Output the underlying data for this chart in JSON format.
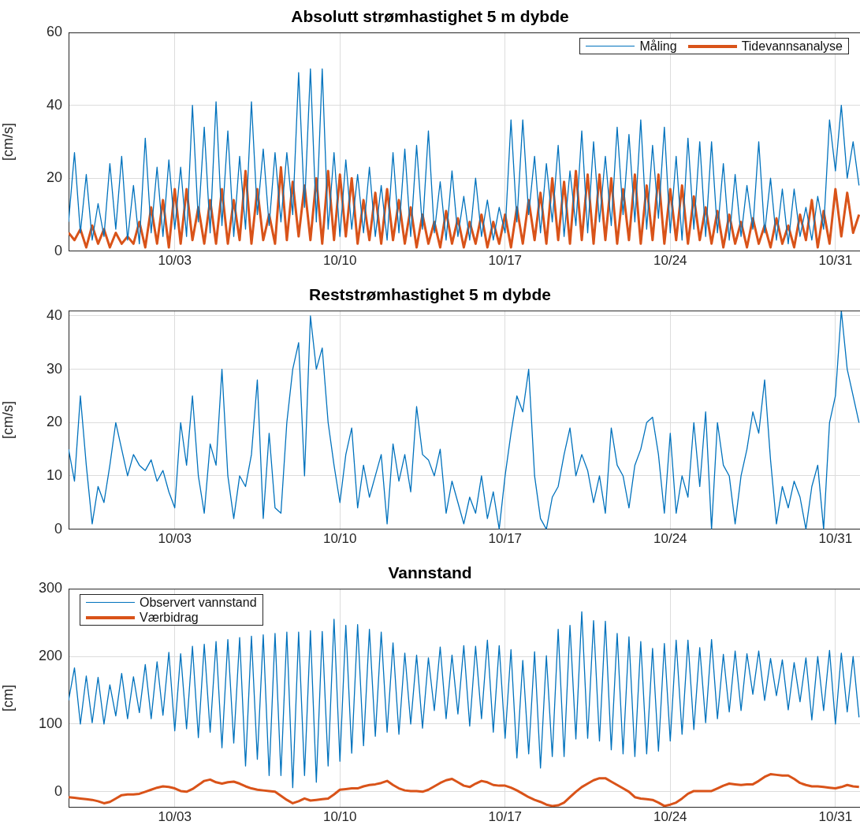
{
  "chart_data": [
    {
      "type": "line",
      "title": "Absolutt strømhastighet 5 m dybde",
      "ylabel": "[cm/s]",
      "legend": "top right",
      "grid": true,
      "xlim": [
        "--09-28T12:00",
        "--11-01T01:00"
      ],
      "ylim": [
        0,
        60
      ],
      "yticks": [
        0,
        20,
        40,
        60
      ],
      "xticks": [
        {
          "value": "--10-03",
          "label": "10/03"
        },
        {
          "value": "--10-10",
          "label": "10/10"
        },
        {
          "value": "--10-17",
          "label": "10/17"
        },
        {
          "value": "--10-24",
          "label": "10/24"
        },
        {
          "value": "--10-31",
          "label": "10/31"
        }
      ],
      "x": [
        "--09-28T12:00",
        "--09-28T18:00",
        "--09-29T00:00",
        "--09-29T06:00",
        "--09-29T12:00",
        "--09-29T18:00",
        "--09-30T00:00",
        "--09-30T06:00",
        "--09-30T12:00",
        "--09-30T18:00",
        "--10-01T00:00",
        "--10-01T06:00",
        "--10-01T12:00",
        "--10-01T18:00",
        "--10-02T00:00",
        "--10-02T06:00",
        "--10-02T12:00",
        "--10-02T18:00",
        "--10-03T00:00",
        "--10-03T06:00",
        "--10-03T12:00",
        "--10-03T18:00",
        "--10-04T00:00",
        "--10-04T06:00",
        "--10-04T12:00",
        "--10-04T18:00",
        "--10-05T00:00",
        "--10-05T06:00",
        "--10-05T12:00",
        "--10-05T18:00",
        "--10-06T00:00",
        "--10-06T06:00",
        "--10-06T12:00",
        "--10-06T18:00",
        "--10-07T00:00",
        "--10-07T06:00",
        "--10-07T12:00",
        "--10-07T18:00",
        "--10-08T00:00",
        "--10-08T06:00",
        "--10-08T12:00",
        "--10-08T18:00",
        "--10-09T00:00",
        "--10-09T06:00",
        "--10-09T12:00",
        "--10-09T18:00",
        "--10-10T00:00",
        "--10-10T06:00",
        "--10-10T12:00",
        "--10-10T18:00",
        "--10-11T00:00",
        "--10-11T06:00",
        "--10-11T12:00",
        "--10-11T18:00",
        "--10-12T00:00",
        "--10-12T06:00",
        "--10-12T12:00",
        "--10-12T18:00",
        "--10-13T00:00",
        "--10-13T06:00",
        "--10-13T12:00",
        "--10-13T18:00",
        "--10-14T00:00",
        "--10-14T06:00",
        "--10-14T12:00",
        "--10-14T18:00",
        "--10-15T00:00",
        "--10-15T06:00",
        "--10-15T12:00",
        "--10-15T18:00",
        "--10-16T00:00",
        "--10-16T06:00",
        "--10-16T12:00",
        "--10-16T18:00",
        "--10-17T00:00",
        "--10-17T06:00",
        "--10-17T12:00",
        "--10-17T18:00",
        "--10-18T00:00",
        "--10-18T06:00",
        "--10-18T12:00",
        "--10-18T18:00",
        "--10-19T00:00",
        "--10-19T06:00",
        "--10-19T12:00",
        "--10-19T18:00",
        "--10-20T00:00",
        "--10-20T06:00",
        "--10-20T12:00",
        "--10-20T18:00",
        "--10-21T00:00",
        "--10-21T06:00",
        "--10-21T12:00",
        "--10-21T18:00",
        "--10-22T00:00",
        "--10-22T06:00",
        "--10-22T12:00",
        "--10-22T18:00",
        "--10-23T00:00",
        "--10-23T06:00",
        "--10-23T12:00",
        "--10-23T18:00",
        "--10-24T00:00",
        "--10-24T06:00",
        "--10-24T12:00",
        "--10-24T18:00",
        "--10-25T00:00",
        "--10-25T06:00",
        "--10-25T12:00",
        "--10-25T18:00",
        "--10-26T00:00",
        "--10-26T06:00",
        "--10-26T12:00",
        "--10-26T18:00",
        "--10-27T00:00",
        "--10-27T06:00",
        "--10-27T12:00",
        "--10-27T18:00",
        "--10-28T00:00",
        "--10-28T06:00",
        "--10-28T12:00",
        "--10-28T18:00",
        "--10-29T00:00",
        "--10-29T06:00",
        "--10-29T12:00",
        "--10-29T18:00",
        "--10-30T00:00",
        "--10-30T06:00",
        "--10-30T12:00",
        "--10-30T18:00",
        "--10-31T00:00",
        "--10-31T06:00",
        "--10-31T12:00",
        "--10-31T18:00",
        "--11-01T00:00"
      ],
      "series": [
        {
          "name": "Måling",
          "color": "#0072bd",
          "values": [
            8,
            27,
            5,
            21,
            3,
            13,
            4,
            24,
            6,
            26,
            3,
            18,
            2,
            31,
            5,
            23,
            4,
            25,
            6,
            23,
            4,
            40,
            8,
            34,
            5,
            41,
            7,
            33,
            4,
            26,
            6,
            41,
            10,
            28,
            7,
            27,
            8,
            27,
            10,
            49,
            12,
            50,
            8,
            50,
            6,
            27,
            4,
            25,
            6,
            21,
            5,
            23,
            4,
            18,
            3,
            27,
            5,
            28,
            4,
            29,
            6,
            33,
            5,
            19,
            3,
            22,
            4,
            15,
            3,
            20,
            4,
            14,
            3,
            12,
            5,
            36,
            8,
            36,
            10,
            26,
            5,
            24,
            8,
            29,
            4,
            22,
            7,
            33,
            5,
            30,
            8,
            26,
            7,
            34,
            10,
            32,
            8,
            36,
            6,
            29,
            9,
            34,
            5,
            26,
            3,
            31,
            6,
            30,
            4,
            30,
            5,
            24,
            3,
            21,
            4,
            18,
            6,
            30,
            5,
            20,
            3,
            17,
            2,
            17,
            4,
            12,
            3,
            15,
            6,
            36,
            22,
            40,
            20,
            30,
            18
          ]
        },
        {
          "name": "Tidevannsanalyse",
          "color": "#d95319",
          "values": [
            5,
            3,
            6,
            1,
            7,
            2,
            6,
            1,
            5,
            2,
            4,
            2,
            8,
            1,
            12,
            2,
            14,
            1,
            17,
            2,
            17,
            3,
            12,
            2,
            14,
            2,
            17,
            2,
            14,
            3,
            22,
            2,
            17,
            3,
            10,
            2,
            23,
            3,
            19,
            4,
            18,
            3,
            20,
            2,
            22,
            3,
            21,
            4,
            20,
            2,
            14,
            3,
            16,
            2,
            17,
            3,
            14,
            2,
            12,
            1,
            10,
            2,
            8,
            1,
            11,
            2,
            9,
            1,
            8,
            2,
            10,
            1,
            8,
            2,
            10,
            1,
            12,
            2,
            14,
            3,
            16,
            2,
            20,
            3,
            19,
            2,
            22,
            3,
            21,
            2,
            21,
            3,
            20,
            2,
            17,
            3,
            21,
            2,
            18,
            3,
            21,
            2,
            17,
            3,
            18,
            2,
            15,
            3,
            12,
            2,
            11,
            1,
            10,
            2,
            8,
            1,
            9,
            2,
            7,
            1,
            9,
            2,
            7,
            1,
            10,
            3,
            14,
            1,
            11,
            2,
            17,
            4,
            16,
            5,
            10
          ]
        }
      ]
    },
    {
      "type": "line",
      "title": "Reststrømhastighet 5 m dybde",
      "ylabel": "[cm/s]",
      "grid": true,
      "xlim": [
        "--09-28T12:00",
        "--11-01T01:00"
      ],
      "ylim": [
        0,
        41
      ],
      "yticks": [
        0,
        10,
        20,
        30,
        40
      ],
      "xticks": [
        {
          "value": "--10-03",
          "label": "10/03"
        },
        {
          "value": "--10-10",
          "label": "10/10"
        },
        {
          "value": "--10-17",
          "label": "10/17"
        },
        {
          "value": "--10-24",
          "label": "10/24"
        },
        {
          "value": "--10-31",
          "label": "10/31"
        }
      ],
      "x": [
        "--09-28T12:00",
        "--09-28T18:00",
        "--09-29T00:00",
        "--09-29T06:00",
        "--09-29T12:00",
        "--09-29T18:00",
        "--09-30T00:00",
        "--09-30T06:00",
        "--09-30T12:00",
        "--09-30T18:00",
        "--10-01T00:00",
        "--10-01T06:00",
        "--10-01T12:00",
        "--10-01T18:00",
        "--10-02T00:00",
        "--10-02T06:00",
        "--10-02T12:00",
        "--10-02T18:00",
        "--10-03T00:00",
        "--10-03T06:00",
        "--10-03T12:00",
        "--10-03T18:00",
        "--10-04T00:00",
        "--10-04T06:00",
        "--10-04T12:00",
        "--10-04T18:00",
        "--10-05T00:00",
        "--10-05T06:00",
        "--10-05T12:00",
        "--10-05T18:00",
        "--10-06T00:00",
        "--10-06T06:00",
        "--10-06T12:00",
        "--10-06T18:00",
        "--10-07T00:00",
        "--10-07T06:00",
        "--10-07T12:00",
        "--10-07T18:00",
        "--10-08T00:00",
        "--10-08T06:00",
        "--10-08T12:00",
        "--10-08T18:00",
        "--10-09T00:00",
        "--10-09T06:00",
        "--10-09T12:00",
        "--10-09T18:00",
        "--10-10T00:00",
        "--10-10T06:00",
        "--10-10T12:00",
        "--10-10T18:00",
        "--10-11T00:00",
        "--10-11T06:00",
        "--10-11T12:00",
        "--10-11T18:00",
        "--10-12T00:00",
        "--10-12T06:00",
        "--10-12T12:00",
        "--10-12T18:00",
        "--10-13T00:00",
        "--10-13T06:00",
        "--10-13T12:00",
        "--10-13T18:00",
        "--10-14T00:00",
        "--10-14T06:00",
        "--10-14T12:00",
        "--10-14T18:00",
        "--10-15T00:00",
        "--10-15T06:00",
        "--10-15T12:00",
        "--10-15T18:00",
        "--10-16T00:00",
        "--10-16T06:00",
        "--10-16T12:00",
        "--10-16T18:00",
        "--10-17T00:00",
        "--10-17T06:00",
        "--10-17T12:00",
        "--10-17T18:00",
        "--10-18T00:00",
        "--10-18T06:00",
        "--10-18T12:00",
        "--10-18T18:00",
        "--10-19T00:00",
        "--10-19T06:00",
        "--10-19T12:00",
        "--10-19T18:00",
        "--10-20T00:00",
        "--10-20T06:00",
        "--10-20T12:00",
        "--10-20T18:00",
        "--10-21T00:00",
        "--10-21T06:00",
        "--10-21T12:00",
        "--10-21T18:00",
        "--10-22T00:00",
        "--10-22T06:00",
        "--10-22T12:00",
        "--10-22T18:00",
        "--10-23T00:00",
        "--10-23T06:00",
        "--10-23T12:00",
        "--10-23T18:00",
        "--10-24T00:00",
        "--10-24T06:00",
        "--10-24T12:00",
        "--10-24T18:00",
        "--10-25T00:00",
        "--10-25T06:00",
        "--10-25T12:00",
        "--10-25T18:00",
        "--10-26T00:00",
        "--10-26T06:00",
        "--10-26T12:00",
        "--10-26T18:00",
        "--10-27T00:00",
        "--10-27T06:00",
        "--10-27T12:00",
        "--10-27T18:00",
        "--10-28T00:00",
        "--10-28T06:00",
        "--10-28T12:00",
        "--10-28T18:00",
        "--10-29T00:00",
        "--10-29T06:00",
        "--10-29T12:00",
        "--10-29T18:00",
        "--10-30T00:00",
        "--10-30T06:00",
        "--10-30T12:00",
        "--10-30T18:00",
        "--10-31T00:00",
        "--10-31T06:00",
        "--10-31T12:00",
        "--10-31T18:00",
        "--11-01T00:00"
      ],
      "series": [
        {
          "color": "#0072bd",
          "values": [
            15,
            9,
            25,
            12,
            1,
            8,
            5,
            12,
            20,
            15,
            10,
            14,
            12,
            11,
            13,
            9,
            11,
            7,
            4,
            20,
            12,
            25,
            10,
            3,
            16,
            12,
            30,
            10,
            2,
            10,
            8,
            14,
            28,
            2,
            18,
            4,
            3,
            20,
            30,
            35,
            10,
            40,
            30,
            34,
            20,
            12,
            5,
            14,
            19,
            4,
            12,
            6,
            10,
            14,
            1,
            16,
            9,
            14,
            7,
            23,
            14,
            13,
            10,
            15,
            3,
            9,
            5,
            1,
            6,
            3,
            10,
            2,
            7,
            0,
            10,
            18,
            25,
            22,
            30,
            10,
            2,
            0,
            6,
            8,
            14,
            19,
            10,
            14,
            11,
            5,
            10,
            3,
            19,
            12,
            10,
            4,
            12,
            15,
            20,
            21,
            14,
            3,
            18,
            3,
            10,
            6,
            20,
            8,
            22,
            0,
            20,
            12,
            10,
            1,
            10,
            15,
            22,
            18,
            28,
            13,
            1,
            8,
            4,
            9,
            6,
            0,
            8,
            12,
            0,
            20,
            25,
            41,
            30,
            25,
            20
          ]
        }
      ]
    },
    {
      "type": "line",
      "title": "Vannstand",
      "ylabel": "[cm]",
      "legend": "top left",
      "grid": true,
      "xlim": [
        "--09-28T12:00",
        "--11-01T01:00"
      ],
      "ylim": [
        -23,
        300
      ],
      "yticks": [
        0,
        100,
        200,
        300
      ],
      "xticks": [
        {
          "value": "--10-03",
          "label": "10/03"
        },
        {
          "value": "--10-10",
          "label": "10/10"
        },
        {
          "value": "--10-17",
          "label": "10/17"
        },
        {
          "value": "--10-24",
          "label": "10/24"
        },
        {
          "value": "--10-31",
          "label": "10/31"
        }
      ],
      "x": [
        "--09-28T12:00",
        "--09-28T18:00",
        "--09-29T00:00",
        "--09-29T06:00",
        "--09-29T12:00",
        "--09-29T18:00",
        "--09-30T00:00",
        "--09-30T06:00",
        "--09-30T12:00",
        "--09-30T18:00",
        "--10-01T00:00",
        "--10-01T06:00",
        "--10-01T12:00",
        "--10-01T18:00",
        "--10-02T00:00",
        "--10-02T06:00",
        "--10-02T12:00",
        "--10-02T18:00",
        "--10-03T00:00",
        "--10-03T06:00",
        "--10-03T12:00",
        "--10-03T18:00",
        "--10-04T00:00",
        "--10-04T06:00",
        "--10-04T12:00",
        "--10-04T18:00",
        "--10-05T00:00",
        "--10-05T06:00",
        "--10-05T12:00",
        "--10-05T18:00",
        "--10-06T00:00",
        "--10-06T06:00",
        "--10-06T12:00",
        "--10-06T18:00",
        "--10-07T00:00",
        "--10-07T06:00",
        "--10-07T12:00",
        "--10-07T18:00",
        "--10-08T00:00",
        "--10-08T06:00",
        "--10-08T12:00",
        "--10-08T18:00",
        "--10-09T00:00",
        "--10-09T06:00",
        "--10-09T12:00",
        "--10-09T18:00",
        "--10-10T00:00",
        "--10-10T06:00",
        "--10-10T12:00",
        "--10-10T18:00",
        "--10-11T00:00",
        "--10-11T06:00",
        "--10-11T12:00",
        "--10-11T18:00",
        "--10-12T00:00",
        "--10-12T06:00",
        "--10-12T12:00",
        "--10-12T18:00",
        "--10-13T00:00",
        "--10-13T06:00",
        "--10-13T12:00",
        "--10-13T18:00",
        "--10-14T00:00",
        "--10-14T06:00",
        "--10-14T12:00",
        "--10-14T18:00",
        "--10-15T00:00",
        "--10-15T06:00",
        "--10-15T12:00",
        "--10-15T18:00",
        "--10-16T00:00",
        "--10-16T06:00",
        "--10-16T12:00",
        "--10-16T18:00",
        "--10-17T00:00",
        "--10-17T06:00",
        "--10-17T12:00",
        "--10-17T18:00",
        "--10-18T00:00",
        "--10-18T06:00",
        "--10-18T12:00",
        "--10-18T18:00",
        "--10-19T00:00",
        "--10-19T06:00",
        "--10-19T12:00",
        "--10-19T18:00",
        "--10-20T00:00",
        "--10-20T06:00",
        "--10-20T12:00",
        "--10-20T18:00",
        "--10-21T00:00",
        "--10-21T06:00",
        "--10-21T12:00",
        "--10-21T18:00",
        "--10-22T00:00",
        "--10-22T06:00",
        "--10-22T12:00",
        "--10-22T18:00",
        "--10-23T00:00",
        "--10-23T06:00",
        "--10-23T12:00",
        "--10-23T18:00",
        "--10-24T00:00",
        "--10-24T06:00",
        "--10-24T12:00",
        "--10-24T18:00",
        "--10-25T00:00",
        "--10-25T06:00",
        "--10-25T12:00",
        "--10-25T18:00",
        "--10-26T00:00",
        "--10-26T06:00",
        "--10-26T12:00",
        "--10-26T18:00",
        "--10-27T00:00",
        "--10-27T06:00",
        "--10-27T12:00",
        "--10-27T18:00",
        "--10-28T00:00",
        "--10-28T06:00",
        "--10-28T12:00",
        "--10-28T18:00",
        "--10-29T00:00",
        "--10-29T06:00",
        "--10-29T12:00",
        "--10-29T18:00",
        "--10-30T00:00",
        "--10-30T06:00",
        "--10-30T12:00",
        "--10-30T18:00",
        "--10-31T00:00",
        "--10-31T06:00",
        "--10-31T12:00",
        "--10-31T18:00",
        "--11-01T00:00"
      ],
      "series": [
        {
          "name": "Observert vannstand",
          "color": "#0072bd",
          "values": [
            135,
            183,
            100,
            171,
            102,
            169,
            100,
            158,
            112,
            175,
            108,
            170,
            117,
            188,
            108,
            192,
            113,
            206,
            90,
            204,
            93,
            215,
            80,
            218,
            88,
            222,
            65,
            225,
            72,
            228,
            38,
            230,
            48,
            232,
            24,
            234,
            24,
            236,
            6,
            236,
            24,
            238,
            14,
            237,
            38,
            255,
            45,
            246,
            57,
            247,
            68,
            240,
            82,
            236,
            88,
            220,
            85,
            205,
            100,
            202,
            94,
            198,
            120,
            214,
            108,
            202,
            115,
            216,
            97,
            215,
            108,
            224,
            88,
            216,
            79,
            210,
            50,
            194,
            56,
            207,
            35,
            201,
            52,
            240,
            52,
            246,
            78,
            266,
            79,
            253,
            75,
            252,
            62,
            234,
            56,
            229,
            52,
            222,
            56,
            212,
            60,
            219,
            75,
            224,
            85,
            224,
            92,
            213,
            102,
            225,
            108,
            203,
            118,
            208,
            120,
            204,
            144,
            208,
            135,
            197,
            142,
            195,
            121,
            191,
            133,
            198,
            106,
            200,
            120,
            209,
            100,
            205,
            118,
            200,
            110
          ]
        },
        {
          "name": "Værbidrag",
          "color": "#d95319",
          "values": [
            -8,
            -9,
            -10,
            -11,
            -12,
            -14,
            -17,
            -15,
            -10,
            -5,
            -4,
            -4,
            -3,
            0,
            3,
            6,
            8,
            7,
            5,
            1,
            0,
            4,
            10,
            16,
            18,
            14,
            12,
            14,
            15,
            12,
            8,
            5,
            3,
            2,
            1,
            0,
            -6,
            -12,
            -17,
            -14,
            -10,
            -13,
            -12,
            -11,
            -10,
            -4,
            3,
            4,
            5,
            5,
            8,
            10,
            11,
            13,
            16,
            10,
            5,
            2,
            1,
            1,
            0,
            3,
            8,
            13,
            17,
            19,
            14,
            9,
            7,
            12,
            16,
            14,
            10,
            9,
            9,
            6,
            2,
            -3,
            -8,
            -12,
            -15,
            -19,
            -21,
            -20,
            -16,
            -8,
            0,
            7,
            12,
            17,
            20,
            20,
            15,
            10,
            5,
            0,
            -8,
            -10,
            -11,
            -12,
            -16,
            -21,
            -19,
            -16,
            -10,
            -3,
            1,
            1,
            1,
            1,
            5,
            9,
            12,
            11,
            10,
            11,
            11,
            16,
            22,
            26,
            25,
            24,
            24,
            19,
            13,
            10,
            8,
            8,
            7,
            6,
            5,
            7,
            10,
            8,
            7
          ]
        }
      ]
    }
  ]
}
